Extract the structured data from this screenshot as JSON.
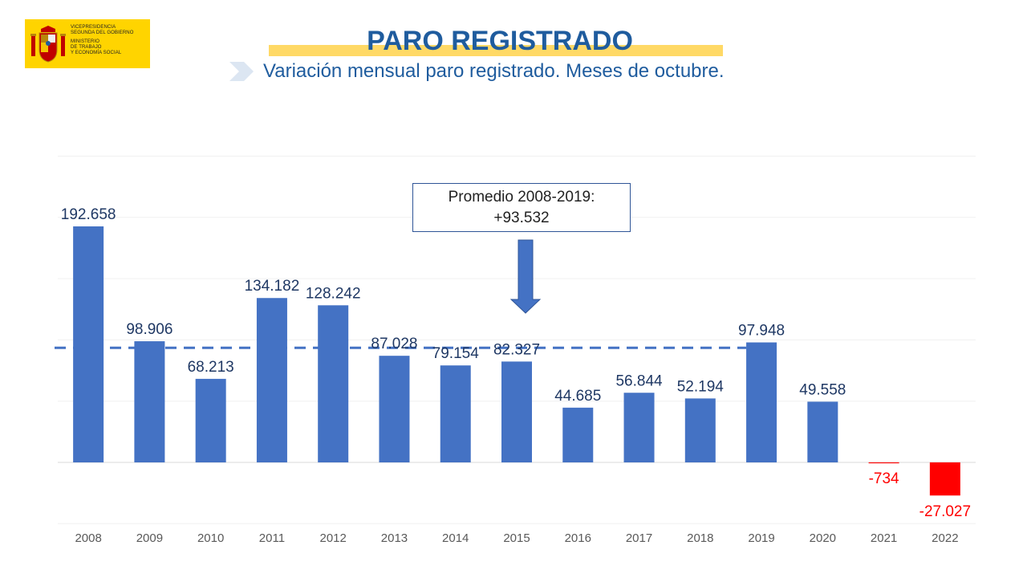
{
  "logo": {
    "lines": [
      "VICEPRESIDENCIA",
      "SEGUNDA DEL GOBIERNO",
      "MINISTERIO",
      "DE TRABAJO",
      "Y ECONOMÍA SOCIAL"
    ],
    "background": "#ffd400"
  },
  "header": {
    "title": "PARO REGISTRADO",
    "subtitle": "Variación mensual paro registrado. Meses de octubre."
  },
  "callout": {
    "line1": "Promedio 2008-2019:",
    "line2": "+93.532"
  },
  "colors": {
    "bar_positive": "#4472c4",
    "bar_negative": "#ff0000",
    "label_positive": "#1f3864",
    "label_negative": "#ff0000",
    "average_line": "#4472c4",
    "title": "#1f5c9e"
  },
  "chart_data": {
    "type": "bar",
    "categories": [
      "2008",
      "2009",
      "2010",
      "2011",
      "2012",
      "2013",
      "2014",
      "2015",
      "2016",
      "2017",
      "2018",
      "2019",
      "2020",
      "2021",
      "2022"
    ],
    "values": [
      192658,
      98906,
      68213,
      134182,
      128242,
      87028,
      79154,
      82327,
      44685,
      56844,
      52194,
      97948,
      49558,
      -734,
      -27027
    ],
    "labels": [
      "192.658",
      "98.906",
      "68.213",
      "134.182",
      "128.242",
      "87.028",
      "79.154",
      "82.327",
      "44.685",
      "56.844",
      "52.194",
      "97.948",
      "49.558",
      "-734",
      "-27.027"
    ],
    "average": 93532,
    "average_range": [
      "2008",
      "2019"
    ],
    "ylim": [
      -50000,
      250000
    ],
    "grid": true,
    "legend": "none",
    "title": "",
    "xlabel": "",
    "ylabel": ""
  }
}
